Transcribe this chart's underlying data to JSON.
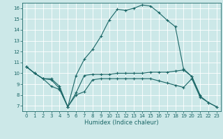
{
  "title": "",
  "xlabel": "Humidex (Indice chaleur)",
  "bg_color": "#cce8e8",
  "grid_color": "#ffffff",
  "line_color": "#1a6666",
  "xlim": [
    -0.5,
    23.5
  ],
  "ylim": [
    6.5,
    16.5
  ],
  "xticks": [
    0,
    1,
    2,
    3,
    4,
    5,
    6,
    7,
    8,
    9,
    10,
    11,
    12,
    13,
    14,
    15,
    16,
    17,
    18,
    19,
    20,
    21,
    22,
    23
  ],
  "yticks": [
    7,
    8,
    9,
    10,
    11,
    12,
    13,
    14,
    15,
    16
  ],
  "series": [
    {
      "x": [
        0,
        1,
        2,
        3,
        4,
        5,
        6,
        7,
        8,
        9,
        10,
        11,
        12,
        13,
        14,
        15,
        16,
        17,
        18,
        19,
        20,
        21,
        22,
        23
      ],
      "y": [
        10.6,
        10.0,
        9.5,
        9.4,
        8.6,
        6.9,
        9.8,
        11.3,
        12.2,
        13.4,
        14.9,
        15.9,
        15.8,
        16.0,
        16.3,
        16.2,
        15.6,
        14.9,
        14.3,
        10.4,
        9.7,
        7.9,
        7.3,
        6.9
      ]
    },
    {
      "x": [
        0,
        1,
        2,
        3,
        4,
        5,
        6,
        7,
        8,
        9,
        10,
        11,
        12,
        13,
        14,
        15,
        16,
        17,
        18,
        19,
        20,
        21,
        22,
        23
      ],
      "y": [
        10.6,
        10.0,
        9.5,
        9.5,
        8.8,
        6.9,
        8.2,
        9.8,
        9.9,
        9.9,
        9.9,
        10.0,
        10.0,
        10.0,
        10.0,
        10.1,
        10.1,
        10.1,
        10.2,
        10.3,
        9.7,
        8.0,
        null,
        null
      ]
    },
    {
      "x": [
        0,
        1,
        2,
        3,
        4,
        5,
        6,
        7,
        8,
        9,
        10,
        11,
        12,
        13,
        14,
        15,
        16,
        17,
        18,
        19,
        20,
        21,
        22,
        23
      ],
      "y": [
        10.6,
        10.0,
        9.5,
        8.8,
        8.5,
        6.9,
        8.0,
        8.3,
        9.4,
        9.5,
        9.5,
        9.5,
        9.5,
        9.5,
        9.5,
        9.5,
        9.3,
        9.1,
        8.9,
        8.7,
        9.5,
        7.8,
        7.3,
        6.9
      ]
    }
  ]
}
